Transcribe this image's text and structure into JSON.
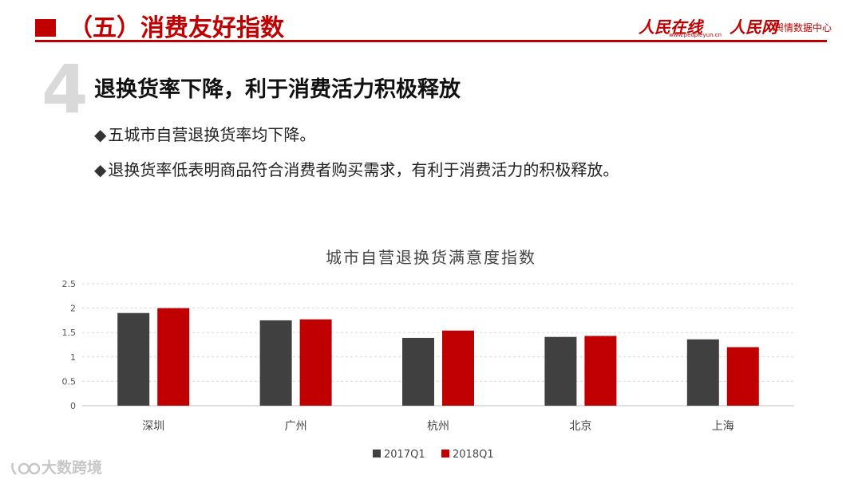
{
  "header": {
    "title": "（五）消费友好指数",
    "logo_people_online": "人民在线",
    "logo_people_online_url": "www.peopleyun.cn",
    "logo_people_daily": "人民网",
    "logo_people_daily_sub": "舆情数据中心"
  },
  "section": {
    "number": "4",
    "heading": "退换货率下降，利于消费活力积极释放",
    "bullets": [
      "五城市自营退换货率均下降。",
      "退换货率低表明商品符合消费者购买需求，有利于消费活力的积极释放。"
    ]
  },
  "colors": {
    "accent": "#c00000",
    "series_2017": "#404040",
    "series_2018": "#c00000"
  },
  "chart_data": {
    "type": "bar",
    "title": "城市自营退换货满意度指数",
    "categories": [
      "深圳",
      "广州",
      "杭州",
      "北京",
      "上海"
    ],
    "series": [
      {
        "name": "2017Q1",
        "values": [
          1.9,
          1.75,
          1.39,
          1.41,
          1.36
        ]
      },
      {
        "name": "2018Q1",
        "values": [
          2.0,
          1.77,
          1.54,
          1.43,
          1.2
        ]
      }
    ],
    "yticks": [
      "0",
      "0.5",
      "1",
      "1.5",
      "2",
      "2.5"
    ],
    "ylim": [
      0,
      2.5
    ],
    "grid": true,
    "legend_position": "bottom"
  },
  "watermark": "大数跨境"
}
